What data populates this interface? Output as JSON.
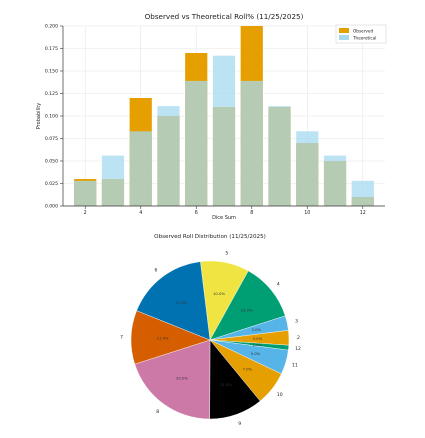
{
  "chart_data": [
    {
      "type": "bar",
      "title": "Observed vs Theoretical Roll% (11/25/2025)",
      "xlabel": "Dice Sum",
      "ylabel": "Probability",
      "categories": [
        2,
        3,
        4,
        5,
        6,
        7,
        8,
        9,
        10,
        11,
        12
      ],
      "xticks": [
        2,
        4,
        6,
        8,
        10,
        12
      ],
      "ylim": [
        0,
        0.2
      ],
      "yticks": [
        "0.000",
        "0.025",
        "0.050",
        "0.075",
        "0.100",
        "0.125",
        "0.150",
        "0.175",
        "0.200"
      ],
      "grid": true,
      "legend_position": "top-right",
      "series": [
        {
          "name": "Observed",
          "color": "#E69F00",
          "values": [
            0.03,
            0.03,
            0.12,
            0.1,
            0.17,
            0.11,
            0.2,
            0.11,
            0.07,
            0.05,
            0.01
          ]
        },
        {
          "name": "Theoretical",
          "color": "#A6D9F0",
          "values": [
            0.028,
            0.056,
            0.083,
            0.111,
            0.139,
            0.167,
            0.139,
            0.111,
            0.083,
            0.056,
            0.028
          ]
        }
      ]
    },
    {
      "type": "pie",
      "title": "Observed Roll Distribution (11/25/2025)",
      "slices": [
        {
          "label": "5",
          "value": 10.0,
          "pct": "10.0%",
          "color": "#F0E442"
        },
        {
          "label": "4",
          "value": 12.0,
          "pct": "12.0%",
          "color": "#009E73"
        },
        {
          "label": "3",
          "value": 3.0,
          "pct": "3.0%",
          "color": "#56B4E9"
        },
        {
          "label": "2",
          "value": 3.0,
          "pct": "3.0%",
          "color": "#E69F00"
        },
        {
          "label": "12",
          "value": 1.0,
          "pct": "1.0%",
          "color": "#009E73"
        },
        {
          "label": "11",
          "value": 5.0,
          "pct": "5.0%",
          "color": "#56B4E9"
        },
        {
          "label": "10",
          "value": 7.0,
          "pct": "7.0%",
          "color": "#E69F00"
        },
        {
          "label": "9",
          "value": 11.0,
          "pct": "11.0%",
          "color": "#000000"
        },
        {
          "label": "8",
          "value": 20.0,
          "pct": "20.0%",
          "color": "#CC79A7"
        },
        {
          "label": "7",
          "value": 11.0,
          "pct": "11.0%",
          "color": "#D55E00"
        },
        {
          "label": "6",
          "value": 17.0,
          "pct": "17.0%",
          "color": "#0072B2"
        }
      ]
    }
  ]
}
